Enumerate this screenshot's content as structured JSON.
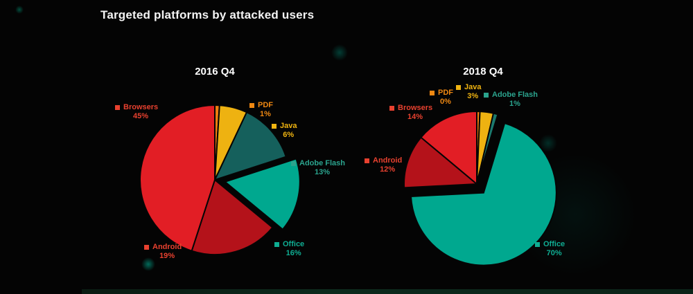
{
  "title": "Targeted platforms by attacked users",
  "background_color": "#040404",
  "accent_color": "#00a88f",
  "chart_data": [
    {
      "type": "pie",
      "title": "2016 Q4",
      "unit": "%",
      "legend_position": "around",
      "slices": [
        {
          "label": "PDF",
          "value": 1,
          "color": "#ef7d0f",
          "label_color": "#ef8812",
          "exploded": false
        },
        {
          "label": "Java",
          "value": 6,
          "color": "#eeb211",
          "label_color": "#f0b411",
          "exploded": false
        },
        {
          "label": "Adobe Flash",
          "value": 13,
          "color": "#15605c",
          "label_color": "#2ba48e",
          "exploded": false
        },
        {
          "label": "Office",
          "value": 16,
          "color": "#00a88f",
          "label_color": "#0fae93",
          "exploded": true
        },
        {
          "label": "Android",
          "value": 19,
          "color": "#b4121a",
          "label_color": "#e8412f",
          "exploded": false
        },
        {
          "label": "Browsers",
          "value": 45,
          "color": "#e21e25",
          "label_color": "#e8412f",
          "exploded": false
        }
      ]
    },
    {
      "type": "pie",
      "title": "2018 Q4",
      "unit": "%",
      "legend_position": "around",
      "slices": [
        {
          "label": "PDF",
          "value": 0,
          "color": "#ef7d0f",
          "label_color": "#ef8812",
          "exploded": false
        },
        {
          "label": "Java",
          "value": 3,
          "color": "#eeb211",
          "label_color": "#f0b411",
          "exploded": false
        },
        {
          "label": "Adobe Flash",
          "value": 1,
          "color": "#1b7a6e",
          "label_color": "#2ba48e",
          "exploded": false
        },
        {
          "label": "Office",
          "value": 70,
          "color": "#00a88f",
          "label_color": "#0fae93",
          "exploded": true
        },
        {
          "label": "Android",
          "value": 12,
          "color": "#b4121a",
          "label_color": "#e8412f",
          "exploded": false
        },
        {
          "label": "Browsers",
          "value": 14,
          "color": "#e21e25",
          "label_color": "#e8412f",
          "exploded": false
        }
      ]
    }
  ]
}
